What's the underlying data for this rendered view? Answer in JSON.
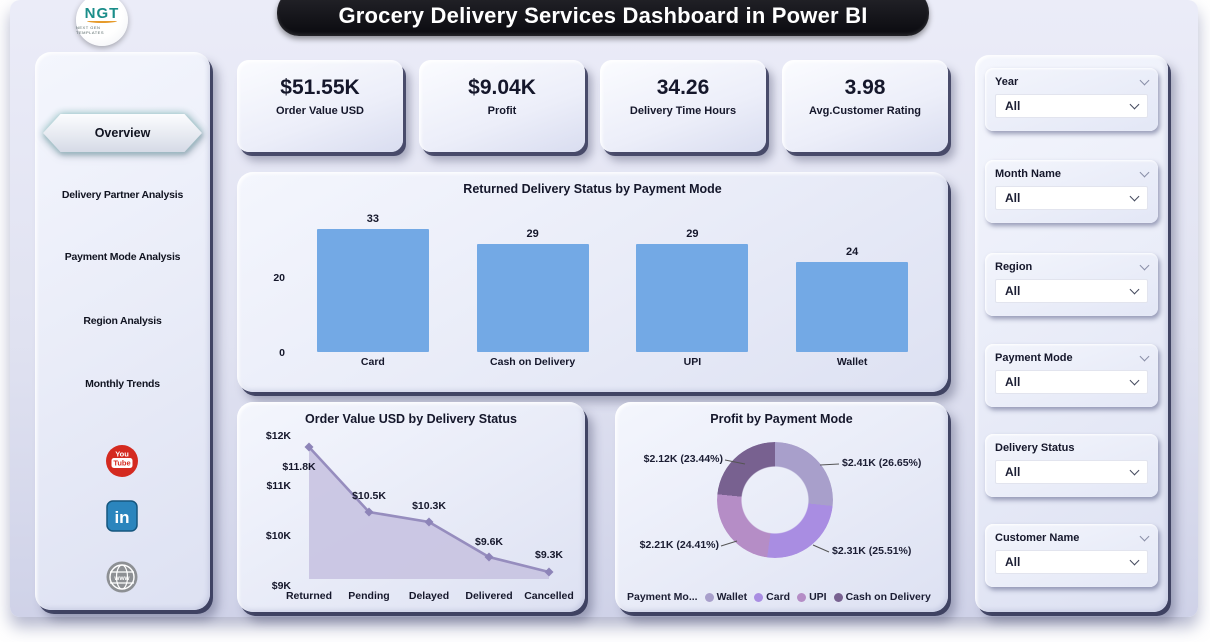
{
  "header": {
    "logo_text": "NGT",
    "logo_tagline": "NEXT GEN TEMPLATES",
    "title": "Grocery Delivery Services Dashboard in Power BI"
  },
  "sidebar": {
    "items": [
      {
        "label": "Overview",
        "active": true
      },
      {
        "label": "Delivery Partner Analysis",
        "active": false
      },
      {
        "label": "Payment Mode Analysis",
        "active": false
      },
      {
        "label": "Region Analysis",
        "active": false
      },
      {
        "label": "Monthly Trends",
        "active": false
      }
    ],
    "social_icons": [
      "youtube",
      "linkedin",
      "website"
    ]
  },
  "kpis": [
    {
      "value": "$51.55K",
      "label": "Order Value USD"
    },
    {
      "value": "$9.04K",
      "label": "Profit"
    },
    {
      "value": "34.26",
      "label": "Delivery Time Hours"
    },
    {
      "value": "3.98",
      "label": "Avg.Customer Rating"
    }
  ],
  "filters": {
    "panels": [
      {
        "title": "Year",
        "value": "All",
        "header_chevron": true
      },
      {
        "title": "Month Name",
        "value": "All",
        "header_chevron": true
      },
      {
        "title": "Region",
        "value": "All",
        "header_chevron": true
      },
      {
        "title": "Payment Mode",
        "value": "All",
        "header_chevron": true
      },
      {
        "title": "Delivery Status",
        "value": "All",
        "header_chevron": false
      },
      {
        "title": "Customer Name",
        "value": "All",
        "header_chevron": true
      }
    ]
  },
  "chart_data": [
    {
      "type": "bar",
      "title": "Returned Delivery Status by Payment Mode",
      "categories": [
        "Card",
        "Cash on Delivery",
        "UPI",
        "Wallet"
      ],
      "values": [
        33,
        29,
        29,
        24
      ],
      "y_ticks": [
        0,
        20
      ],
      "ylim": [
        0,
        38
      ],
      "bar_color": "#73a9e5",
      "grid": false,
      "legend": "none"
    },
    {
      "type": "line",
      "title": "Order Value USD by Delivery Status",
      "categories": [
        "Returned",
        "Pending",
        "Delayed",
        "Delivered",
        "Cancelled"
      ],
      "values": [
        11.8,
        10.5,
        10.3,
        9.6,
        9.3
      ],
      "point_labels": [
        "$11.8K",
        "$10.5K",
        "$10.3K",
        "$9.6K",
        "$9.3K"
      ],
      "y_ticks": [
        "$12K",
        "$11K",
        "$10K",
        "$9K"
      ],
      "y_tick_values": [
        12,
        11,
        10,
        9
      ],
      "ylim": [
        9,
        12
      ],
      "area_fill": true,
      "line_color": "#968dbe",
      "fill_color": "#c8c3e1",
      "marker_color": "#8d84b8",
      "grid": false,
      "legend": "none"
    },
    {
      "type": "pie",
      "subtype": "donut",
      "title": "Profit by Payment Mode",
      "legend_title": "Payment Mo...",
      "legend_position": "bottom",
      "slices": [
        {
          "name": "Wallet",
          "label": "$2.41K (26.65%)",
          "value_k": 2.41,
          "pct": 26.65,
          "color": "#a89fcb"
        },
        {
          "name": "Card",
          "label": "$2.31K (25.51%)",
          "value_k": 2.31,
          "pct": 25.51,
          "color": "#a98de2"
        },
        {
          "name": "UPI",
          "label": "$2.21K (24.41%)",
          "value_k": 2.21,
          "pct": 24.41,
          "color": "#b58dc6"
        },
        {
          "name": "Cash on Delivery",
          "label": "$2.12K (23.44%)",
          "value_k": 2.12,
          "pct": 23.44,
          "color": "#786190"
        }
      ]
    }
  ]
}
